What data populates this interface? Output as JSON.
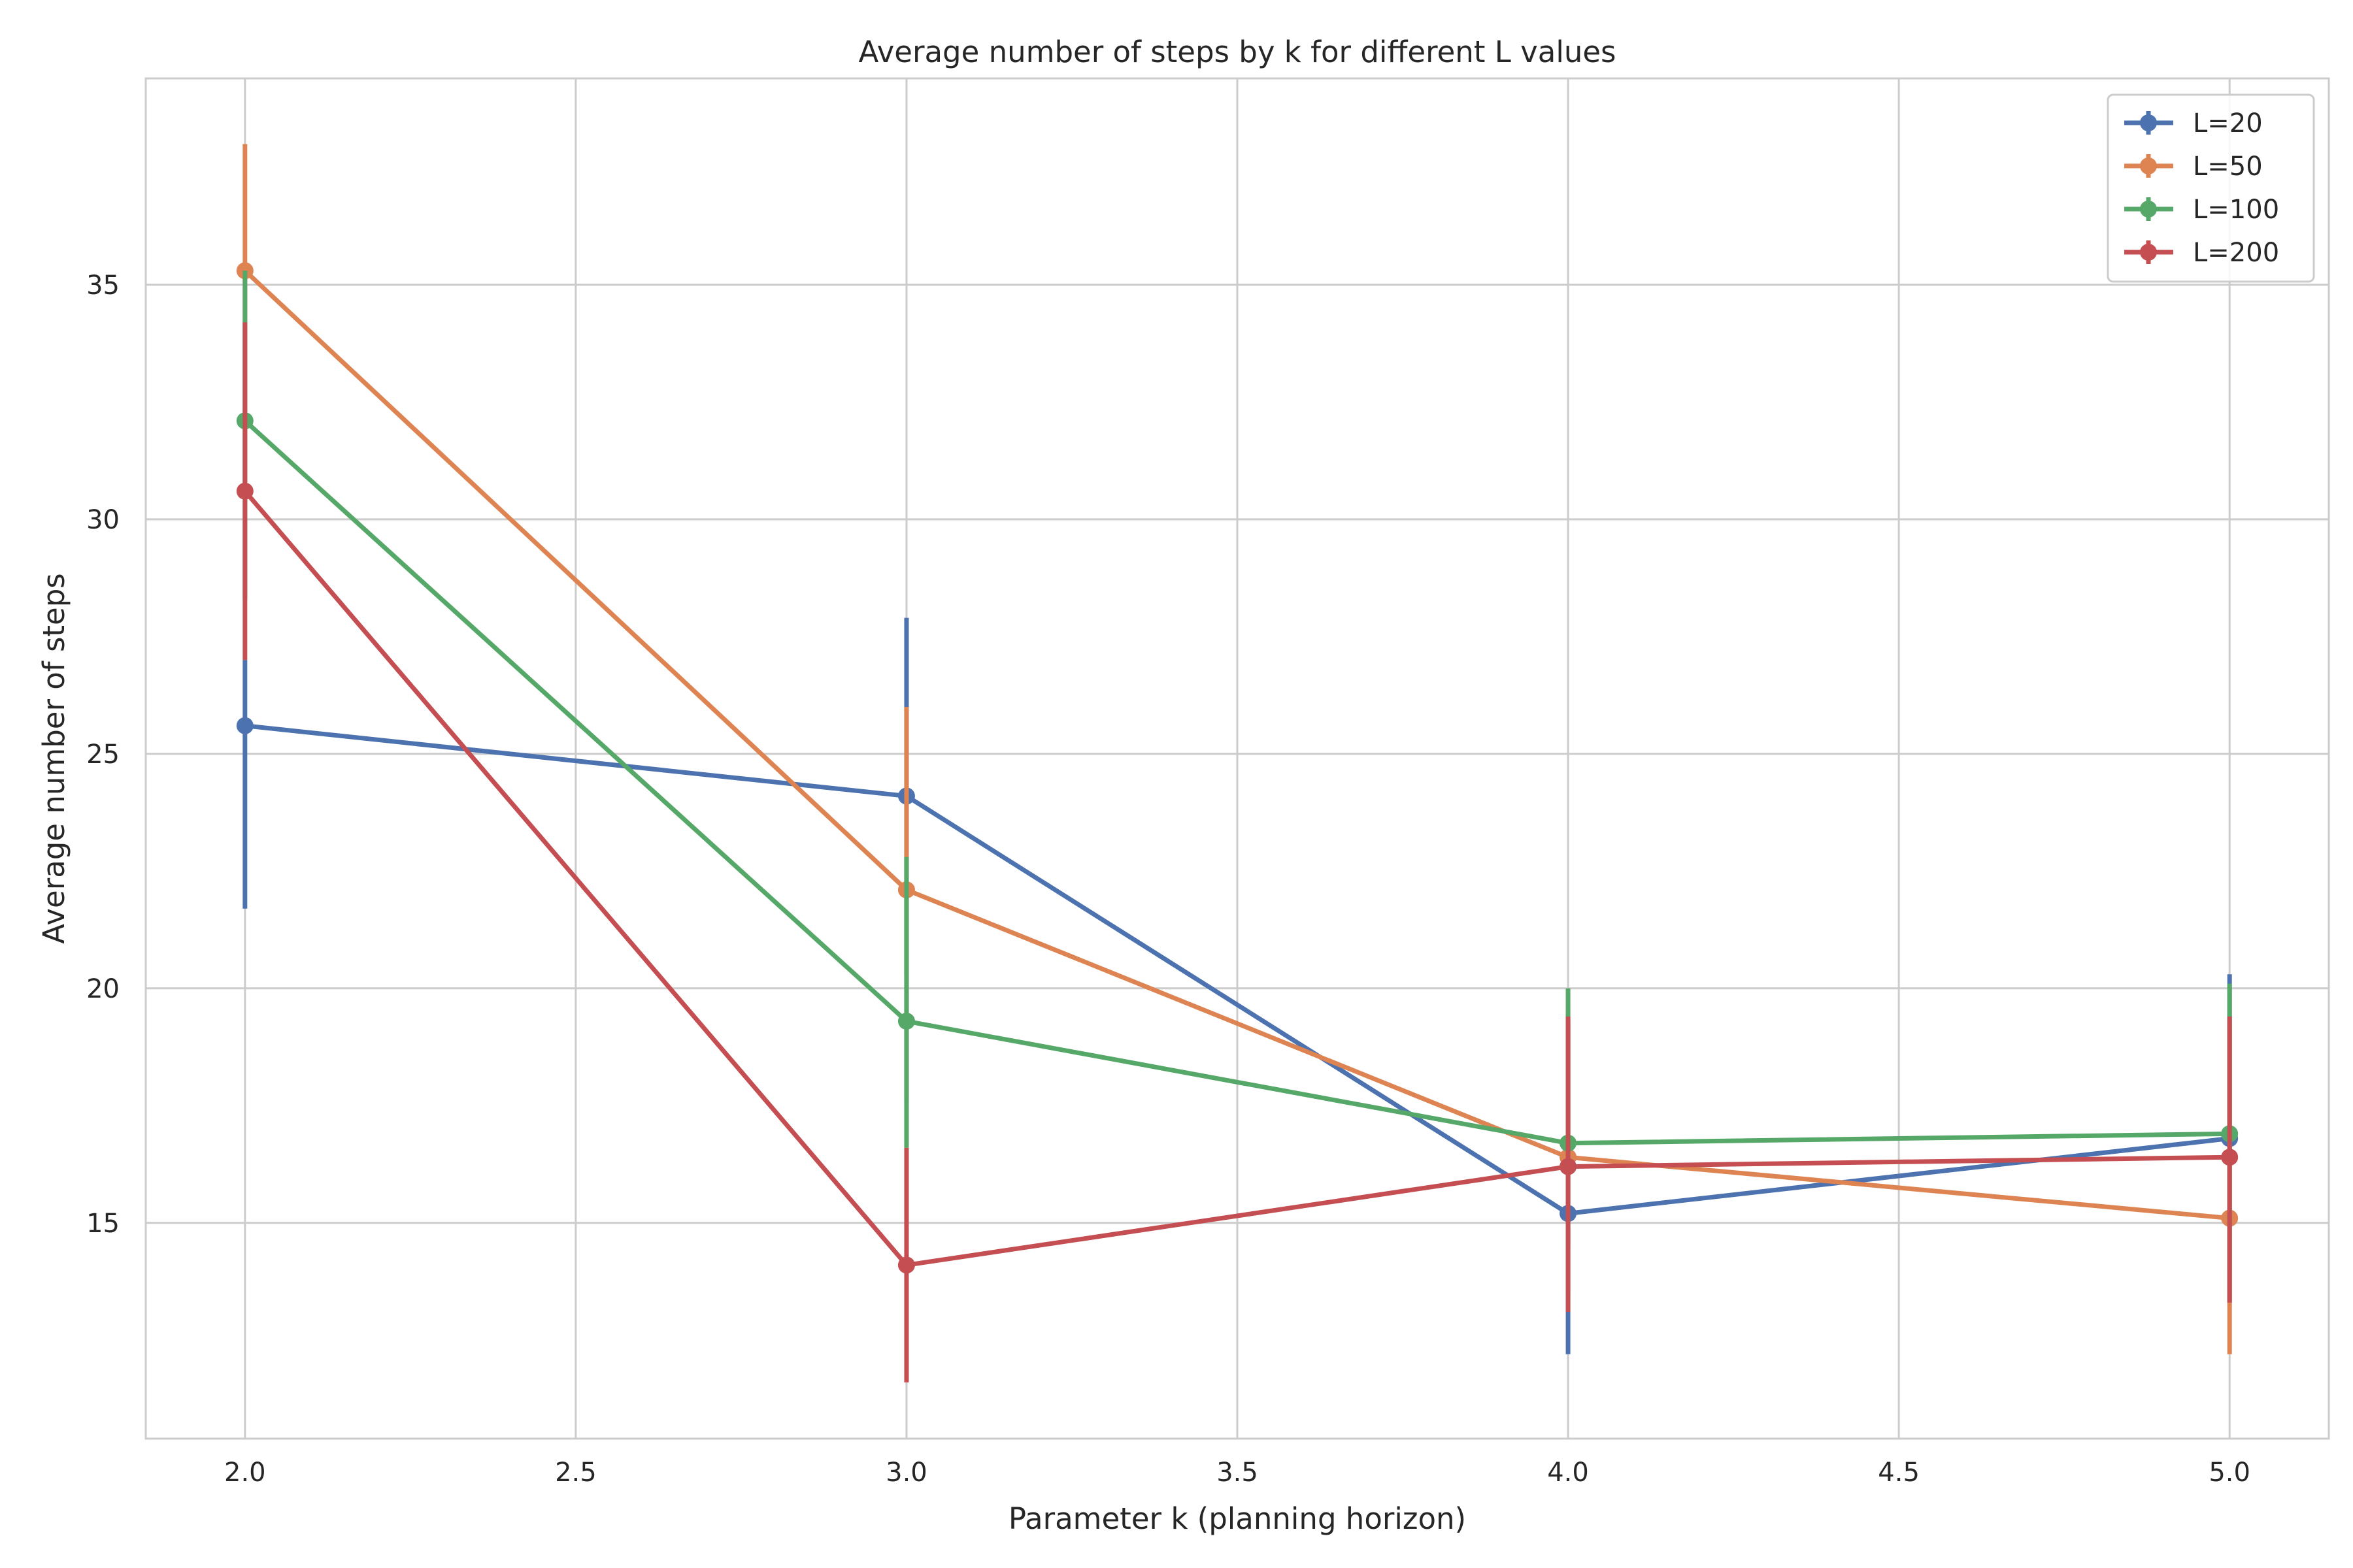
{
  "chart_data": {
    "type": "line",
    "title": "Average number of steps by k for different L values",
    "xlabel": "Parameter k (planning horizon)",
    "ylabel": "Average number of steps",
    "xlim": [
      1.85,
      5.15
    ],
    "ylim": [
      10.4,
      39.4
    ],
    "xticks": [
      2.0,
      2.5,
      3.0,
      3.5,
      4.0,
      4.5,
      5.0
    ],
    "xtick_labels": [
      "2.0",
      "2.5",
      "3.0",
      "3.5",
      "4.0",
      "4.5",
      "5.0"
    ],
    "yticks": [
      15,
      20,
      25,
      30,
      35
    ],
    "ytick_labels": [
      "15",
      "20",
      "25",
      "30",
      "35"
    ],
    "grid": true,
    "legend_position": "top-right",
    "x": [
      2.0,
      3.0,
      4.0,
      5.0
    ],
    "series": [
      {
        "name": "L=20",
        "color": "#4c72b0",
        "values": [
          25.6,
          24.1,
          15.2,
          16.8
        ],
        "err_low": [
          21.7,
          20.3,
          12.2,
          13.3
        ],
        "err_high": [
          27.0,
          27.9,
          19.3,
          20.3
        ]
      },
      {
        "name": "L=50",
        "color": "#dd8452",
        "values": [
          35.3,
          22.1,
          16.4,
          15.1
        ],
        "err_low": [
          30.6,
          17.6,
          13.5,
          12.2
        ],
        "err_high": [
          38.0,
          26.0,
          19.6,
          19.2
        ]
      },
      {
        "name": "L=100",
        "color": "#55a868",
        "values": [
          32.1,
          19.3,
          16.7,
          16.9
        ],
        "err_low": [
          28.3,
          16.6,
          14.5,
          14.0
        ],
        "err_high": [
          35.3,
          22.8,
          20.0,
          20.1
        ]
      },
      {
        "name": "L=200",
        "color": "#c44e52",
        "values": [
          30.6,
          14.1,
          16.2,
          16.4
        ],
        "err_low": [
          27.0,
          11.6,
          13.1,
          13.3
        ],
        "err_high": [
          34.2,
          16.6,
          19.4,
          19.4
        ]
      }
    ]
  }
}
